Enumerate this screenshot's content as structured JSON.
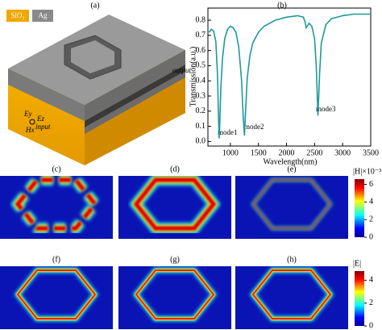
{
  "panel_a": {
    "label": "(a)",
    "legend": [
      "SiO₂",
      "Ag"
    ],
    "texts": {
      "output": "output",
      "input": "input",
      "ey": "Ey",
      "ez": "Ez",
      "hx": "Hx"
    }
  },
  "chart_data": {
    "type": "line",
    "label": "(b)",
    "x_label": "Wavelength(nm)",
    "y_label": "Transmission(a.u.)",
    "xlim": [
      600,
      3500
    ],
    "xticks": [
      1000,
      1500,
      2000,
      2500,
      3000,
      3500
    ],
    "ylim": [
      -0.03,
      0.88
    ],
    "yticks": [
      {
        "value": 0,
        "label": "0.0"
      },
      0.1,
      0.2,
      0.3,
      0.4,
      0.5,
      0.6,
      0.7,
      0.8
    ],
    "annotations": [
      "mode1",
      "mode2",
      "mode3"
    ],
    "series": [
      {
        "color": "#1f9a98",
        "x": [
          620,
          660,
          700,
          740,
          770,
          790,
          800,
          810,
          830,
          860,
          900,
          950,
          1000,
          1050,
          1100,
          1150,
          1200,
          1230,
          1250,
          1270,
          1300,
          1350,
          1400,
          1500,
          1600,
          1700,
          1800,
          2000,
          2200,
          2300,
          2330,
          2350,
          2370,
          2400,
          2450,
          2500,
          2530,
          2560,
          2590,
          2620,
          2700,
          2800,
          3000,
          3200,
          3500
        ],
        "values": [
          0.72,
          0.74,
          0.73,
          0.66,
          0.45,
          0.15,
          0.02,
          0.1,
          0.35,
          0.55,
          0.68,
          0.74,
          0.76,
          0.75,
          0.72,
          0.62,
          0.4,
          0.15,
          0.04,
          0.2,
          0.42,
          0.57,
          0.65,
          0.72,
          0.76,
          0.78,
          0.8,
          0.82,
          0.83,
          0.82,
          0.79,
          0.75,
          0.76,
          0.78,
          0.76,
          0.68,
          0.5,
          0.17,
          0.45,
          0.65,
          0.77,
          0.81,
          0.83,
          0.84,
          0.84
        ]
      }
    ]
  },
  "field_maps": [
    {
      "label": "(c)"
    },
    {
      "label": "(d)"
    },
    {
      "label": "(e)"
    },
    {
      "label": "(f)"
    },
    {
      "label": "(g)"
    },
    {
      "label": "(h)"
    }
  ],
  "colorbars": [
    {
      "label": "|H|×10⁻³",
      "lim": [
        0,
        6.6
      ],
      "ticks": [
        0,
        2,
        4,
        6
      ]
    },
    {
      "label": "|E|",
      "lim": [
        0,
        4.8
      ],
      "ticks": [
        0,
        2,
        4
      ]
    }
  ]
}
